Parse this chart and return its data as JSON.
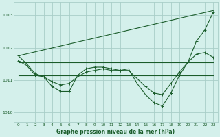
{
  "bg_color": "#d4f0eb",
  "grid_color": "#a8cec8",
  "line_color": "#1a5c2a",
  "title": "Graphe pression niveau de la mer (hPa)",
  "xlim": [
    -0.5,
    23.5
  ],
  "ylim": [
    1009.7,
    1013.4
  ],
  "yticks": [
    1010,
    1011,
    1012,
    1013
  ],
  "xticks": [
    0,
    1,
    2,
    3,
    4,
    5,
    6,
    7,
    8,
    9,
    10,
    11,
    12,
    13,
    14,
    15,
    16,
    17,
    18,
    19,
    20,
    21,
    22,
    23
  ],
  "line_diagonal": {
    "x": [
      0,
      23
    ],
    "y": [
      1011.75,
      1013.15
    ]
  },
  "line_flat_upper": {
    "x": [
      0,
      23
    ],
    "y": [
      1011.55,
      1011.55
    ]
  },
  "line_flat_lower": {
    "x": [
      0,
      23
    ],
    "y": [
      1011.15,
      1011.15
    ]
  },
  "line_wavy": {
    "x": [
      0,
      1,
      2,
      3,
      4,
      5,
      6,
      7,
      8,
      9,
      10,
      11,
      12,
      13,
      14,
      15,
      16,
      17,
      18,
      19,
      20,
      21,
      22,
      23
    ],
    "y": [
      1011.75,
      1011.5,
      1011.2,
      1011.1,
      1010.8,
      1010.65,
      1010.65,
      1011.15,
      1011.35,
      1011.4,
      1011.4,
      1011.35,
      1011.3,
      1011.35,
      1010.9,
      1010.55,
      1010.3,
      1010.2,
      1010.6,
      1011.15,
      1011.55,
      1012.2,
      1012.55,
      1013.1
    ]
  },
  "line_smooth": {
    "x": [
      0,
      1,
      2,
      3,
      4,
      5,
      6,
      7,
      8,
      9,
      10,
      11,
      12,
      13,
      14,
      15,
      16,
      17,
      18,
      19,
      20,
      21,
      22,
      23
    ],
    "y": [
      1011.6,
      1011.45,
      1011.15,
      1011.1,
      1010.95,
      1010.85,
      1010.9,
      1011.1,
      1011.25,
      1011.3,
      1011.35,
      1011.3,
      1011.3,
      1011.3,
      1011.05,
      1010.8,
      1010.6,
      1010.55,
      1010.9,
      1011.25,
      1011.55,
      1011.8,
      1011.85,
      1011.7
    ]
  }
}
